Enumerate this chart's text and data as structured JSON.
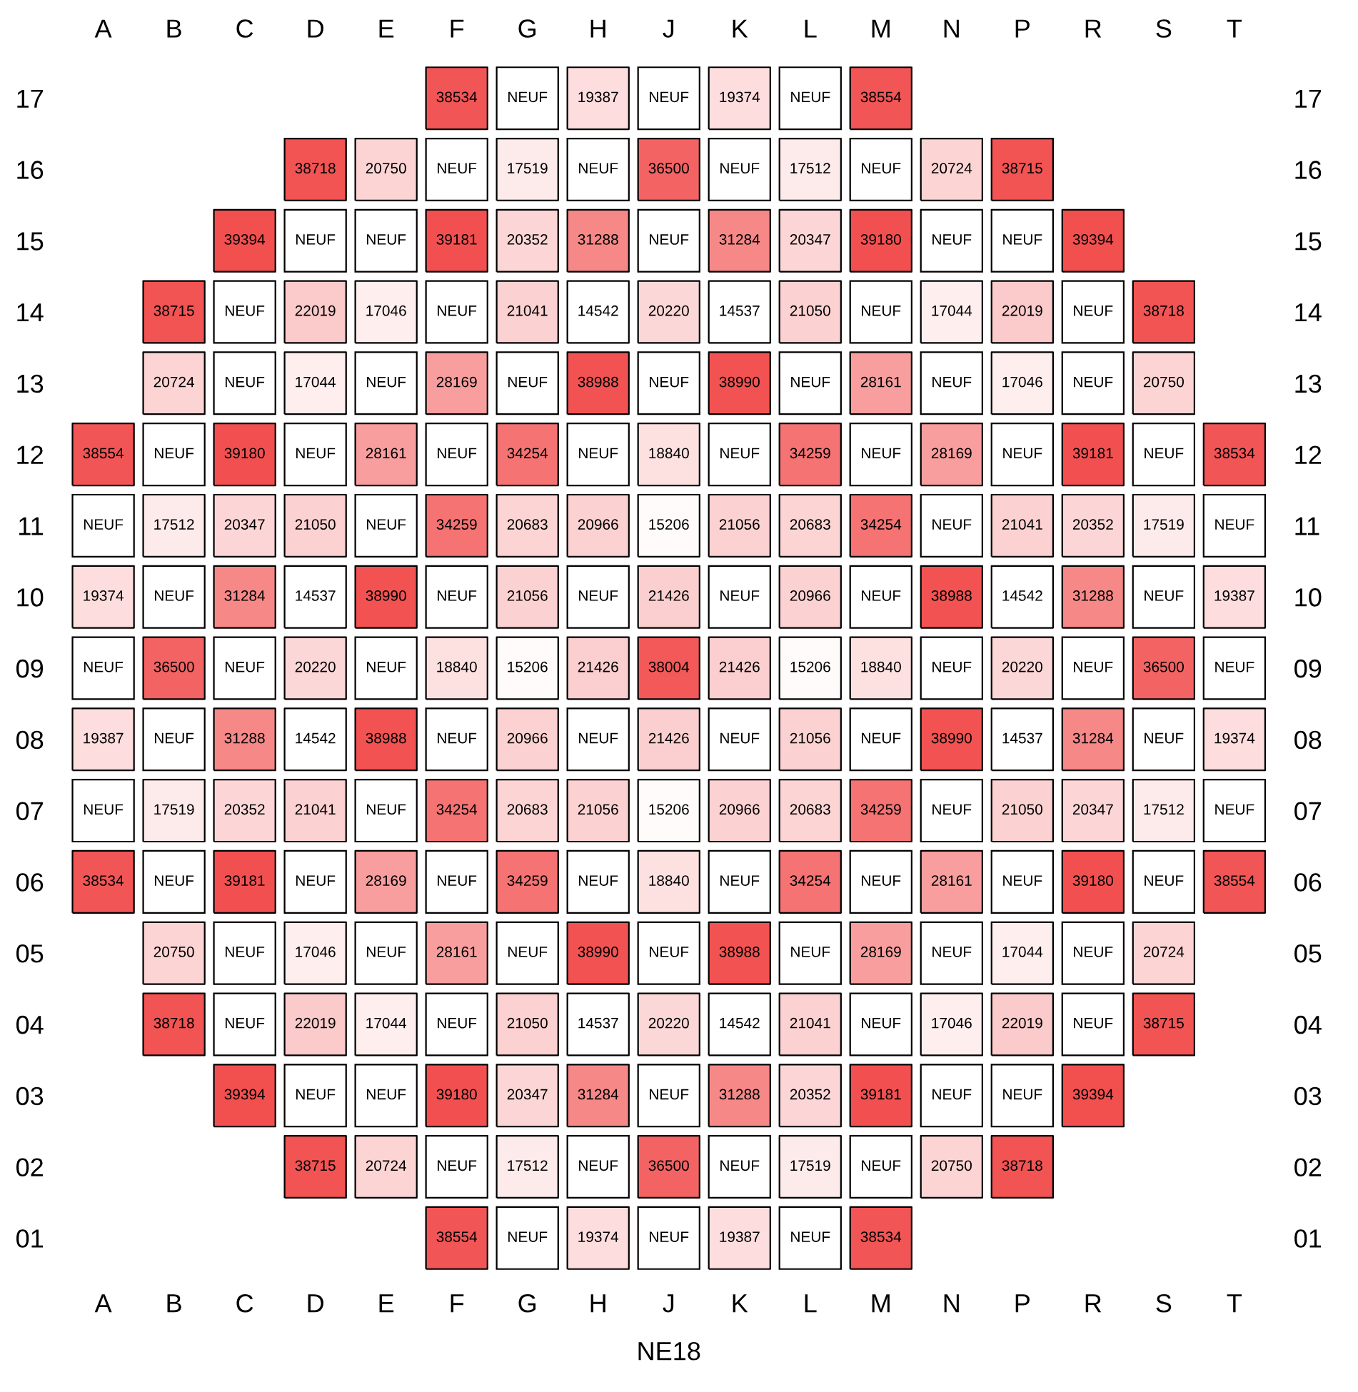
{
  "chart_data": {
    "type": "heatmap",
    "xlabel": "NE18",
    "categories": [
      "A",
      "B",
      "C",
      "D",
      "E",
      "F",
      "G",
      "H",
      "J",
      "K",
      "L",
      "M",
      "N",
      "P",
      "R",
      "S",
      "T"
    ],
    "y_categories": [
      "17",
      "16",
      "15",
      "14",
      "13",
      "12",
      "11",
      "10",
      "09",
      "08",
      "07",
      "06",
      "05",
      "04",
      "03",
      "02",
      "01"
    ],
    "y2_categories": [
      "17",
      "16",
      "15",
      "14",
      "13",
      "12",
      "11",
      "10",
      "09",
      "08",
      "07",
      "06",
      "05",
      "04",
      "03",
      "02",
      "01"
    ],
    "cells": [
      [
        null,
        null,
        null,
        null,
        null,
        38534,
        null,
        19387,
        null,
        19374,
        null,
        38554,
        null,
        null,
        null,
        null,
        null
      ],
      [
        null,
        null,
        null,
        38718,
        20750,
        null,
        17519,
        null,
        36500,
        null,
        17512,
        null,
        20724,
        38715,
        null,
        null,
        null
      ],
      [
        null,
        null,
        39394,
        null,
        null,
        39181,
        20352,
        31288,
        null,
        31284,
        20347,
        39180,
        null,
        null,
        39394,
        null,
        null
      ],
      [
        null,
        38715,
        null,
        22019,
        17046,
        null,
        21041,
        14542,
        20220,
        14537,
        21050,
        null,
        17044,
        22019,
        null,
        38718,
        null
      ],
      [
        null,
        20724,
        null,
        17044,
        null,
        28169,
        null,
        38988,
        null,
        38990,
        null,
        28161,
        null,
        17046,
        null,
        20750,
        null
      ],
      [
        38554,
        null,
        39180,
        null,
        28161,
        null,
        34254,
        null,
        18840,
        null,
        34259,
        null,
        28169,
        null,
        39181,
        null,
        38534
      ],
      [
        null,
        17512,
        20347,
        21050,
        null,
        34259,
        20683,
        20966,
        15206,
        21056,
        20683,
        34254,
        null,
        21041,
        20352,
        17519,
        null
      ],
      [
        19374,
        null,
        31284,
        14537,
        38990,
        null,
        21056,
        null,
        21426,
        null,
        20966,
        null,
        38988,
        14542,
        31288,
        null,
        19387
      ],
      [
        null,
        36500,
        null,
        20220,
        null,
        18840,
        15206,
        21426,
        38004,
        21426,
        15206,
        18840,
        null,
        20220,
        null,
        36500,
        null
      ],
      [
        19387,
        null,
        31288,
        14542,
        38988,
        null,
        20966,
        null,
        21426,
        null,
        21056,
        null,
        38990,
        14537,
        31284,
        null,
        19374
      ],
      [
        null,
        17519,
        20352,
        21041,
        null,
        34254,
        20683,
        21056,
        15206,
        20966,
        20683,
        34259,
        null,
        21050,
        20347,
        17512,
        null
      ],
      [
        38534,
        null,
        39181,
        null,
        28169,
        null,
        34259,
        null,
        18840,
        null,
        34254,
        null,
        28161,
        null,
        39180,
        null,
        38554
      ],
      [
        null,
        20750,
        null,
        17046,
        null,
        28161,
        null,
        38990,
        null,
        38988,
        null,
        28169,
        null,
        17044,
        null,
        20724,
        null
      ],
      [
        null,
        38718,
        null,
        22019,
        17044,
        null,
        21050,
        14537,
        20220,
        14542,
        21041,
        null,
        17046,
        22019,
        null,
        38715,
        null
      ],
      [
        null,
        null,
        39394,
        null,
        null,
        39180,
        20347,
        31284,
        null,
        31288,
        20352,
        39181,
        null,
        null,
        39394,
        null,
        null
      ],
      [
        null,
        null,
        null,
        38715,
        20724,
        null,
        17512,
        null,
        36500,
        null,
        17519,
        null,
        20750,
        38718,
        null,
        null,
        null
      ],
      [
        null,
        null,
        null,
        null,
        null,
        38554,
        null,
        19374,
        null,
        19387,
        null,
        38534,
        null,
        null,
        null,
        null,
        null
      ]
    ],
    "cell_labels": [
      [
        null,
        null,
        null,
        null,
        null,
        "38534",
        "NEUF",
        "19387",
        "NEUF",
        "19374",
        "NEUF",
        "38554",
        null,
        null,
        null,
        null,
        null
      ],
      [
        null,
        null,
        null,
        "38718",
        "20750",
        "NEUF",
        "17519",
        "NEUF",
        "36500",
        "NEUF",
        "17512",
        "NEUF",
        "20724",
        "38715",
        null,
        null,
        null
      ],
      [
        null,
        null,
        "39394",
        "NEUF",
        "NEUF",
        "39181",
        "20352",
        "31288",
        "NEUF",
        "31284",
        "20347",
        "39180",
        "NEUF",
        "NEUF",
        "39394",
        null,
        null
      ],
      [
        null,
        "38715",
        "NEUF",
        "22019",
        "17046",
        "NEUF",
        "21041",
        "14542",
        "20220",
        "14537",
        "21050",
        "NEUF",
        "17044",
        "22019",
        "NEUF",
        "38718",
        null
      ],
      [
        null,
        "20724",
        "NEUF",
        "17044",
        "NEUF",
        "28169",
        "NEUF",
        "38988",
        "NEUF",
        "38990",
        "NEUF",
        "28161",
        "NEUF",
        "17046",
        "NEUF",
        "20750",
        null
      ],
      [
        "38554",
        "NEUF",
        "39180",
        "NEUF",
        "28161",
        "NEUF",
        "34254",
        "NEUF",
        "18840",
        "NEUF",
        "34259",
        "NEUF",
        "28169",
        "NEUF",
        "39181",
        "NEUF",
        "38534"
      ],
      [
        "NEUF",
        "17512",
        "20347",
        "21050",
        "NEUF",
        "34259",
        "20683",
        "20966",
        "15206",
        "21056",
        "20683",
        "34254",
        "NEUF",
        "21041",
        "20352",
        "17519",
        "NEUF"
      ],
      [
        "19374",
        "NEUF",
        "31284",
        "14537",
        "38990",
        "NEUF",
        "21056",
        "NEUF",
        "21426",
        "NEUF",
        "20966",
        "NEUF",
        "38988",
        "14542",
        "31288",
        "NEUF",
        "19387"
      ],
      [
        "NEUF",
        "36500",
        "NEUF",
        "20220",
        "NEUF",
        "18840",
        "15206",
        "21426",
        "38004",
        "21426",
        "15206",
        "18840",
        "NEUF",
        "20220",
        "NEUF",
        "36500",
        "NEUF"
      ],
      [
        "19387",
        "NEUF",
        "31288",
        "14542",
        "38988",
        "NEUF",
        "20966",
        "NEUF",
        "21426",
        "NEUF",
        "21056",
        "NEUF",
        "38990",
        "14537",
        "31284",
        "NEUF",
        "19374"
      ],
      [
        "NEUF",
        "17519",
        "20352",
        "21041",
        "NEUF",
        "34254",
        "20683",
        "21056",
        "15206",
        "20966",
        "20683",
        "34259",
        "NEUF",
        "21050",
        "20347",
        "17512",
        "NEUF"
      ],
      [
        "38534",
        "NEUF",
        "39181",
        "NEUF",
        "28169",
        "NEUF",
        "34259",
        "NEUF",
        "18840",
        "NEUF",
        "34254",
        "NEUF",
        "28161",
        "NEUF",
        "39180",
        "NEUF",
        "38554"
      ],
      [
        null,
        "20750",
        "NEUF",
        "17046",
        "NEUF",
        "28161",
        "NEUF",
        "38990",
        "NEUF",
        "38988",
        "NEUF",
        "28169",
        "NEUF",
        "17044",
        "NEUF",
        "20724",
        null
      ],
      [
        null,
        "38718",
        "NEUF",
        "22019",
        "17044",
        "NEUF",
        "21050",
        "14537",
        "20220",
        "14542",
        "21041",
        "NEUF",
        "17046",
        "22019",
        "NEUF",
        "38715",
        null
      ],
      [
        null,
        null,
        "39394",
        "NEUF",
        "NEUF",
        "39180",
        "20347",
        "31284",
        "NEUF",
        "31288",
        "20352",
        "39181",
        "NEUF",
        "NEUF",
        "39394",
        null,
        null
      ],
      [
        null,
        null,
        null,
        "38715",
        "20724",
        "NEUF",
        "17512",
        "NEUF",
        "36500",
        "NEUF",
        "17519",
        "NEUF",
        "20750",
        "38718",
        null,
        null,
        null
      ],
      [
        null,
        null,
        null,
        null,
        null,
        "38554",
        "NEUF",
        "19374",
        "NEUF",
        "19387",
        "NEUF",
        "38534",
        null,
        null,
        null,
        null,
        null
      ]
    ]
  }
}
